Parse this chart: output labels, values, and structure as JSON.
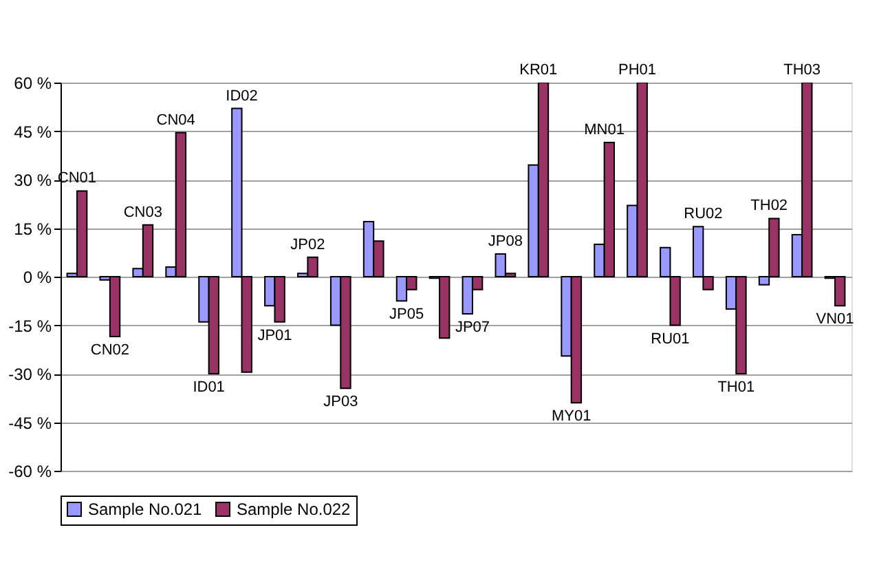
{
  "chart_data": {
    "type": "bar",
    "categories": [
      "CN01",
      "CN02",
      "CN03",
      "CN04",
      "ID01",
      "ID02",
      "JP01",
      "JP02",
      "JP03",
      null,
      "JP05",
      null,
      "JP07",
      "JP08",
      "KR01",
      "MY01",
      "MN01",
      "PH01",
      "RU01",
      "RU02",
      "TH01",
      "TH02",
      "TH03",
      "VN01"
    ],
    "series": [
      {
        "name": "Sample No.021",
        "color": "#9999ff",
        "values": [
          1,
          -1,
          2.5,
          3,
          -14,
          52,
          -9,
          1,
          -15,
          17,
          -7.5,
          -0.5,
          -11.5,
          7,
          34.5,
          -24.5,
          10,
          22,
          9,
          15.5,
          -10,
          -2.5,
          13,
          -0.5
        ]
      },
      {
        "name": "Sample No.022",
        "color": "#993366",
        "values": [
          26.5,
          -18.5,
          16,
          44.5,
          -30,
          -29.5,
          -14,
          6,
          -34.5,
          11,
          -4,
          -19,
          -4,
          1,
          60,
          -39,
          41.5,
          60,
          -15,
          -4,
          -30,
          18,
          60,
          -9
        ]
      }
    ],
    "ylim": [
      -60,
      60
    ],
    "yticks": [
      {
        "value": -60,
        "label": "-60 %"
      },
      {
        "value": -45,
        "label": "-45 %"
      },
      {
        "value": -30,
        "label": "-30 %"
      },
      {
        "value": -15,
        "label": "-15 %"
      },
      {
        "value": 0,
        "label": "0 %"
      },
      {
        "value": 15,
        "label": "15 %"
      },
      {
        "value": 30,
        "label": "30 %"
      },
      {
        "value": 45,
        "label": "45 %"
      },
      {
        "value": 60,
        "label": "60 %"
      }
    ],
    "grid": "y",
    "legend": "bottom"
  }
}
